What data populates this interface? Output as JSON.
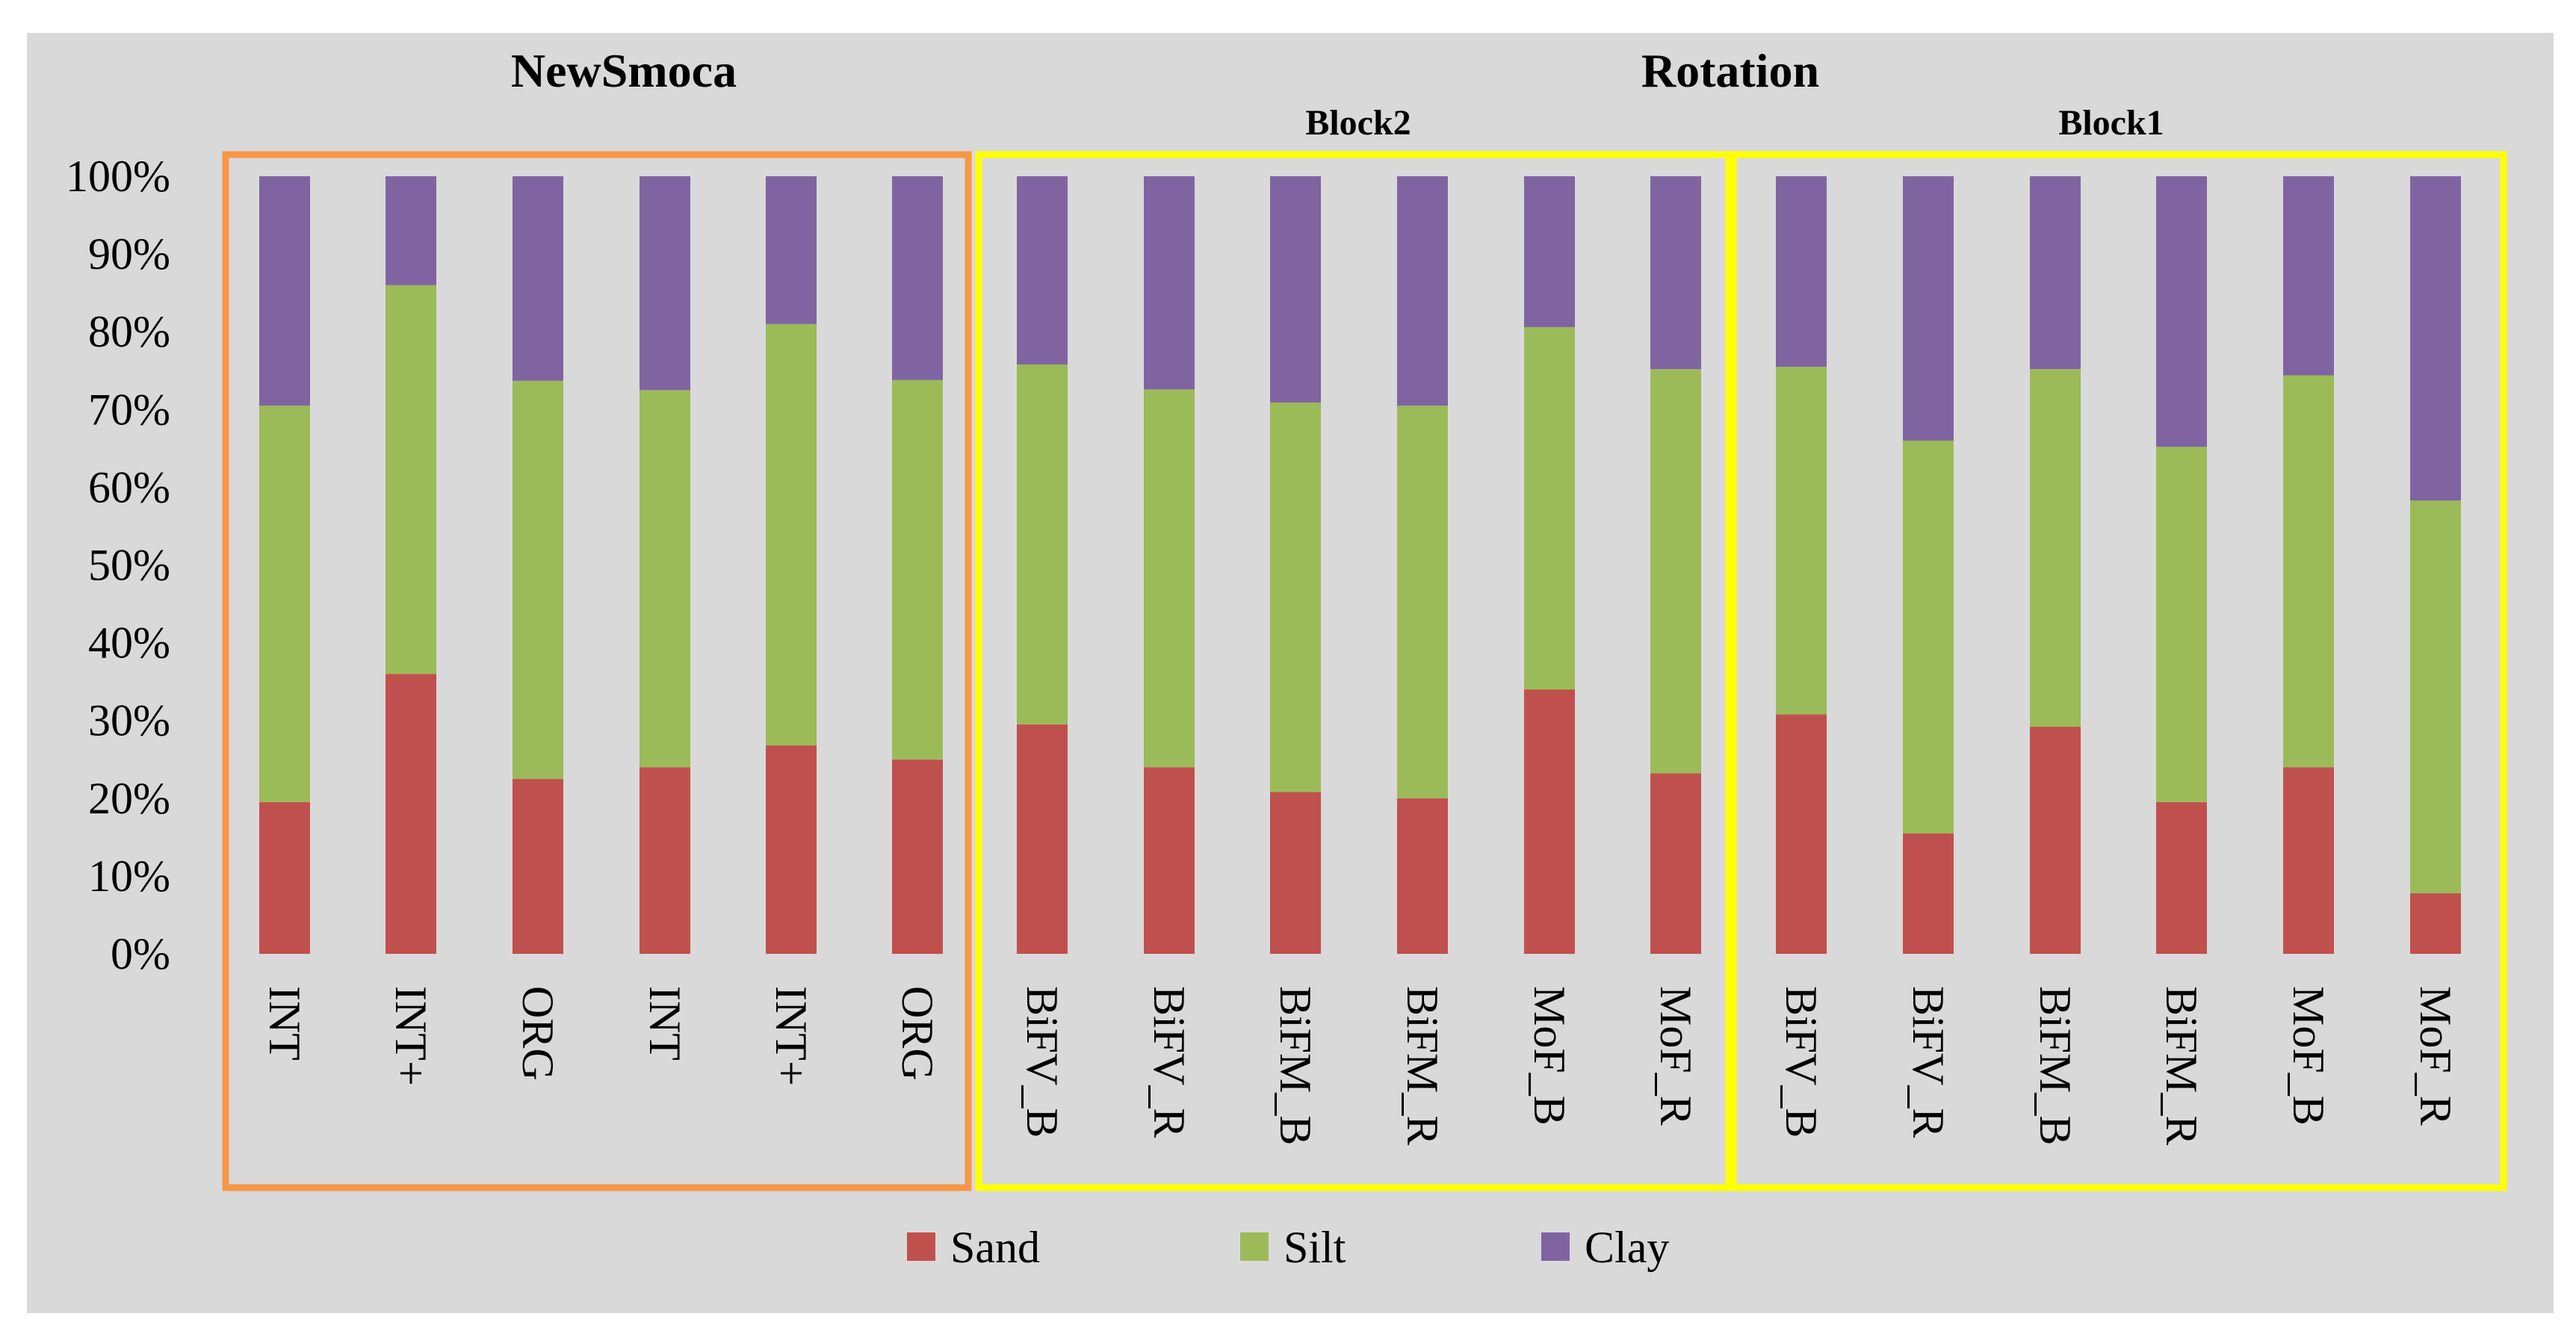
{
  "chart_data": {
    "type": "bar",
    "stacked": "percent",
    "group_titles": [
      "NewSmoca",
      "Rotation"
    ],
    "block_titles": [
      "Block2",
      "Block1"
    ],
    "categories": [
      "INT",
      "INT+",
      "ORG",
      "INT",
      "INT+",
      "ORG",
      "BiFV_B",
      "BiFV_R",
      "BiFM_B",
      "BiFM_R",
      "MoF_B",
      "MoF_R",
      "BiFV_B",
      "BiFV_R",
      "BiFM_B",
      "BiFM_R",
      "MoF_B",
      "MoF_R"
    ],
    "series": [
      {
        "name": "Sand",
        "color": "#C0504D",
        "values": [
          19.5,
          36,
          22.5,
          24,
          26.8,
          25,
          29.5,
          24,
          20.8,
          20,
          34,
          23.2,
          30.8,
          15.5,
          29.2,
          19.5,
          24,
          7.8
        ]
      },
      {
        "name": "Silt",
        "color": "#9BBB59",
        "values": [
          51,
          50,
          51.2,
          48.5,
          54.2,
          48.8,
          46.3,
          48.6,
          50.1,
          50.5,
          46.6,
          52,
          44.7,
          50.5,
          46,
          45.7,
          50.4,
          50.5
        ]
      },
      {
        "name": "Clay",
        "color": "#8064A2",
        "values": [
          29.5,
          14,
          26.3,
          27.5,
          19,
          26.2,
          24.2,
          27.4,
          29.1,
          29.5,
          19.4,
          24.8,
          24.5,
          34,
          24.8,
          34.8,
          25.6,
          41.7
        ]
      }
    ],
    "yticks": [
      "0%",
      "10%",
      "20%",
      "30%",
      "40%",
      "50%",
      "60%",
      "70%",
      "80%",
      "90%",
      "100%"
    ],
    "ylim": [
      0,
      100
    ],
    "legend_position": "bottom-center",
    "grid": false,
    "colors": {
      "background": "#D9D9D9",
      "newsmoca_box": "#F79646",
      "rotation_box": "#FFFF00"
    }
  }
}
